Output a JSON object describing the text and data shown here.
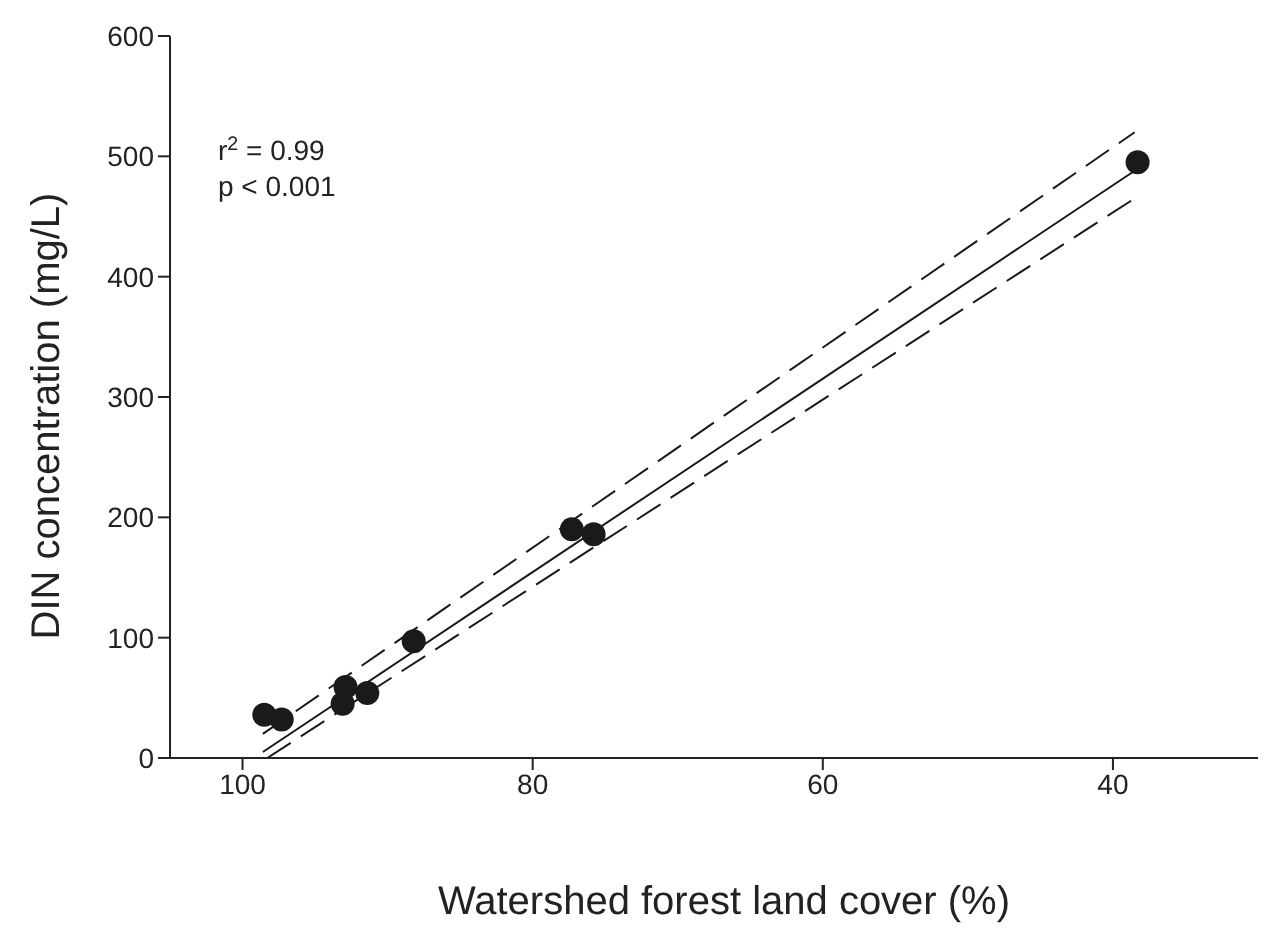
{
  "chart_data": {
    "type": "scatter",
    "xlabel": "Watershed forest land cover (%)",
    "ylabel": "DIN concentration (mg/L)",
    "xlim": [
      105,
      30
    ],
    "xticks": [
      100,
      80,
      60,
      40
    ],
    "ylim": [
      0,
      600
    ],
    "yticks": [
      0,
      100,
      200,
      300,
      400,
      500,
      600
    ],
    "annotations": [
      "r$^{2}$ = 0.99\np < 0.001"
    ],
    "series": [
      {
        "color": "#1a1a1a",
        "marker": "circle",
        "x": [
          98.5,
          97.3,
          93.1,
          92.9,
          91.4,
          88.2,
          77.3,
          75.8,
          38.3
        ],
        "values": [
          36,
          32,
          45,
          59,
          54,
          97,
          190,
          186,
          495
        ]
      },
      {
        "type": "line",
        "color": "#1a1a1a",
        "marker": "none",
        "line_style": "solid",
        "x": [
          98.6,
          38.5
        ],
        "values": [
          5,
          488
        ]
      },
      {
        "type": "line",
        "color": "#1a1a1a",
        "marker": "none",
        "line_style": "dashed",
        "x": [
          98.6,
          38.5
        ],
        "values": [
          20,
          520
        ]
      },
      {
        "type": "line",
        "color": "#1a1a1a",
        "marker": "none",
        "line_style": "dashed",
        "x": [
          98.3,
          38.5
        ],
        "values": [
          0,
          465
        ]
      }
    ]
  }
}
